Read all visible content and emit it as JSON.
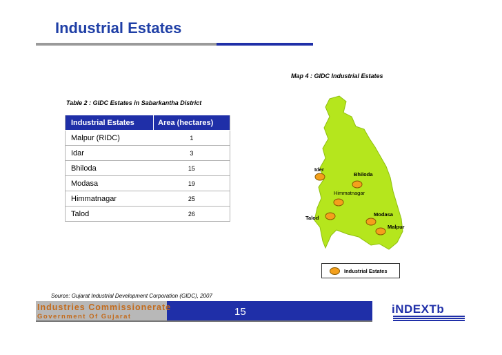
{
  "page": {
    "title": "Industrial Estates",
    "page_number": "15"
  },
  "table": {
    "caption": "Table 2 : GIDC Estates in Sabarkantha  District",
    "headers": [
      "Industrial Estates",
      "Area (hectares)"
    ],
    "rows": [
      {
        "estate": "Malpur (RIDC)",
        "area": "1"
      },
      {
        "estate": "Idar",
        "area": "3"
      },
      {
        "estate": "Bhiloda",
        "area": "15"
      },
      {
        "estate": "Modasa",
        "area": "19"
      },
      {
        "estate": "Himmatnagar",
        "area": "25"
      },
      {
        "estate": "Talod",
        "area": "26"
      }
    ]
  },
  "map": {
    "caption": "Map 4 : GIDC Industrial Estates",
    "fill_color": "#b5e61d",
    "marker_color": "#f4a01c",
    "markers": [
      {
        "label": "Ider"
      },
      {
        "label": "Bhiloda"
      },
      {
        "label": "Himmatnagar"
      },
      {
        "label": "Talod"
      },
      {
        "label": "Modasa"
      },
      {
        "label": "Malpur"
      }
    ],
    "legend_label": "Industrial Estates"
  },
  "source": "Source: Gujarat Industrial Development Corporation (GIDC), 2007",
  "footer": {
    "org_name": "Industries Commissionerate",
    "org_sub": "Government Of Gujarat",
    "logo_text": "iNDEXTb",
    "brand_grey": "#b8b8b8",
    "brand_blue": "#1f2fa8",
    "brand_orange": "#c36a1a"
  }
}
